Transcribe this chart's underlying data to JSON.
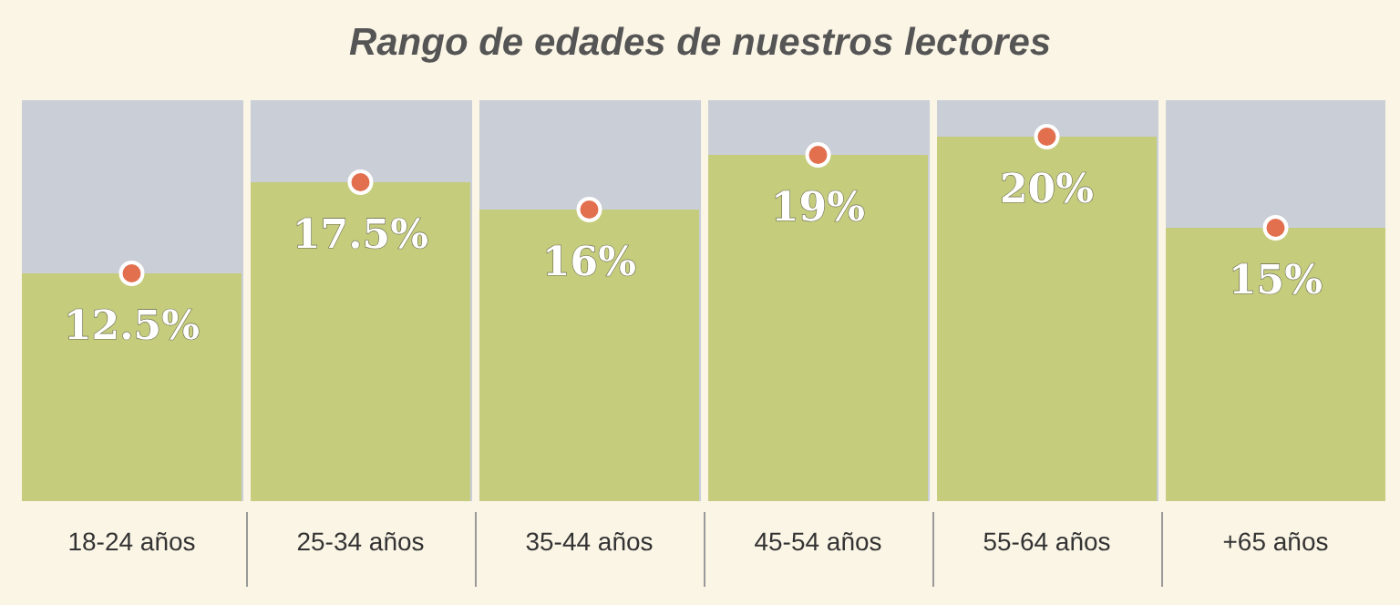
{
  "chart_data": {
    "type": "bar",
    "title": "Rango de edades de nuestros lectores",
    "categories": [
      "18-24 años",
      "25-34 años",
      "35-44 años",
      "45-54 años",
      "55-64 años",
      "+65 años"
    ],
    "series": [
      {
        "color": "#c5cc7c",
        "values": [
          12.5,
          17.5,
          16,
          19,
          20,
          15
        ],
        "value_labels": [
          "12.5%",
          "17.5%",
          "16%",
          "19%",
          "20%",
          "15%"
        ]
      },
      {
        "type": "scatter",
        "color": "#e2704f",
        "marker": "circle",
        "x": [
          "18-24 años",
          "25-34 años",
          "35-44 años",
          "45-54 años",
          "55-64 años",
          "+65 años"
        ],
        "values": [
          12.5,
          17.5,
          16,
          19,
          20,
          15
        ]
      }
    ]
  }
}
